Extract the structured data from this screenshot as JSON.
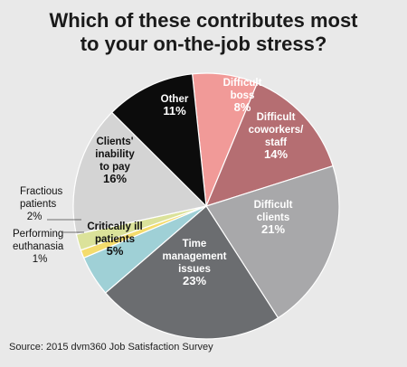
{
  "title_lines": [
    "Which of these contributes most",
    "to your on-the-job stress?"
  ],
  "source": "Source: 2015 dvm360 Job Satisfaction Survey",
  "chart_data": {
    "type": "pie",
    "title": "Which of these contributes most to your on-the-job stress?",
    "unit": "%",
    "slices": [
      {
        "label": "Difficult boss",
        "label_lines": [
          "Difficult",
          "boss"
        ],
        "value": 8,
        "value_label": "8%",
        "color": "#f19a98",
        "text_color": "#ffffff",
        "label_placement": "inside"
      },
      {
        "label": "Difficult coworkers/staff",
        "label_lines": [
          "Difficult",
          "coworkers/",
          "staff"
        ],
        "value": 14,
        "value_label": "14%",
        "color": "#b56e72",
        "text_color": "#ffffff",
        "label_placement": "inside"
      },
      {
        "label": "Difficult clients",
        "label_lines": [
          "Difficult",
          "clients"
        ],
        "value": 21,
        "value_label": "21%",
        "color": "#a8a8aa",
        "text_color": "#ffffff",
        "label_placement": "inside"
      },
      {
        "label": "Time management issues",
        "label_lines": [
          "Time",
          "management",
          "issues"
        ],
        "value": 23,
        "value_label": "23%",
        "color": "#6b6d70",
        "text_color": "#ffffff",
        "label_placement": "inside"
      },
      {
        "label": "Critically ill patients",
        "label_lines": [
          "Critically ill",
          "patients"
        ],
        "value": 5,
        "value_label": "5%",
        "color": "#9fd0d6",
        "text_color": "#111111",
        "label_placement": "inside"
      },
      {
        "label": "Performing euthanasia",
        "label_lines": [
          "Performing",
          "euthanasia"
        ],
        "value": 1,
        "value_label": "1%",
        "color": "#f4dc6c",
        "text_color": "#111111",
        "label_placement": "outside"
      },
      {
        "label": "Fractious patients",
        "label_lines": [
          "Fractious",
          "patients"
        ],
        "value": 2,
        "value_label": "2%",
        "color": "#dbe29a",
        "text_color": "#111111",
        "label_placement": "outside"
      },
      {
        "label": "Clients' inability to pay",
        "label_lines": [
          "Clients'",
          "inability",
          "to pay"
        ],
        "value": 16,
        "value_label": "16%",
        "color": "#d4d4d4",
        "text_color": "#111111",
        "label_placement": "inside"
      },
      {
        "label": "Other",
        "label_lines": [
          "Other"
        ],
        "value": 11,
        "value_label": "11%",
        "color": "#0c0c0c",
        "text_color": "#ffffff",
        "label_placement": "inside"
      }
    ]
  }
}
